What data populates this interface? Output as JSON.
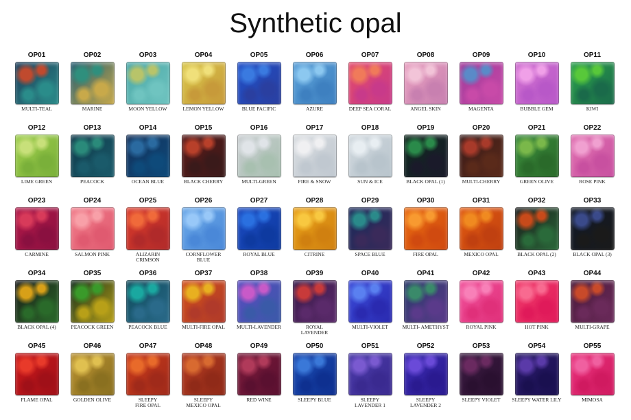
{
  "page": {
    "title": "Synthetic opal"
  },
  "swatches": [
    {
      "code": "OP01",
      "name": "MULTI-TEAL",
      "colors": [
        "#1d3b58",
        "#c04a2e",
        "#2a8c8a"
      ]
    },
    {
      "code": "OP02",
      "name": "MARINE",
      "colors": [
        "#1f5a70",
        "#2f8f7d",
        "#c8a94a"
      ]
    },
    {
      "code": "OP03",
      "name": "MOON YELLOW",
      "colors": [
        "#4aa7a6",
        "#b8c46a",
        "#6fc4c0"
      ]
    },
    {
      "code": "OP04",
      "name": "LEMON YELLOW",
      "colors": [
        "#d9c64a",
        "#f0e07a",
        "#c79a3a"
      ]
    },
    {
      "code": "OP05",
      "name": "BLUE PACIFIC",
      "colors": [
        "#1f4fc8",
        "#3a7ae0",
        "#2a3fa0"
      ]
    },
    {
      "code": "OP06",
      "name": "AZURE",
      "colors": [
        "#5aa0d8",
        "#8cc8f0",
        "#3e80c0"
      ]
    },
    {
      "code": "OP07",
      "name": "DEEP SEA CORAL",
      "colors": [
        "#e24a6a",
        "#f07a5a",
        "#c83a8a"
      ]
    },
    {
      "code": "OP08",
      "name": "ANGEL SKIN",
      "colors": [
        "#e8a0c0",
        "#f2c4d8",
        "#c880b0"
      ]
    },
    {
      "code": "OP09",
      "name": "MAGENTA",
      "colors": [
        "#a03a9a",
        "#5a8ac8",
        "#c84aa8"
      ]
    },
    {
      "code": "OP10",
      "name": "BUBBLE GEM",
      "colors": [
        "#d070d0",
        "#f0a0e8",
        "#b858c8"
      ]
    },
    {
      "code": "OP11",
      "name": "KIWI",
      "colors": [
        "#2aa04a",
        "#58c83a",
        "#1a6a4a"
      ]
    },
    {
      "code": "OP12",
      "name": "LIME GREEN",
      "colors": [
        "#9ccc4a",
        "#c8e07a",
        "#7ab03a"
      ]
    },
    {
      "code": "OP13",
      "name": "PEACOCK",
      "colors": [
        "#0f3a4a",
        "#2a8a7a",
        "#1a5a6a"
      ]
    },
    {
      "code": "OP14",
      "name": "OCEAN BLUE",
      "colors": [
        "#12305a",
        "#2a6aa0",
        "#0e4a7a"
      ]
    },
    {
      "code": "OP15",
      "name": "BLACK CHERRY",
      "colors": [
        "#5a1a18",
        "#b8402a",
        "#3a1a1a"
      ]
    },
    {
      "code": "OP16",
      "name": "MULTI-GREEN",
      "colors": [
        "#c8ccd0",
        "#e0e4e8",
        "#a8c0b0"
      ]
    },
    {
      "code": "OP17",
      "name": "FIRE & SNOW",
      "colors": [
        "#d8dce0",
        "#f0f0f2",
        "#c0c8d0"
      ]
    },
    {
      "code": "OP18",
      "name": "SUN & ICE",
      "colors": [
        "#d0d8de",
        "#e8eef2",
        "#b8c4cc"
      ]
    },
    {
      "code": "OP19",
      "name": "BLACK OPAL (1)",
      "colors": [
        "#0e2a1e",
        "#2a8a4a",
        "#1a1a2a"
      ]
    },
    {
      "code": "OP20",
      "name": "MULTI-CHERRY",
      "colors": [
        "#3a1a18",
        "#a83a2a",
        "#5a2a1a"
      ]
    },
    {
      "code": "OP21",
      "name": "GREEN OLIVE",
      "colors": [
        "#3a8a3a",
        "#7ab84a",
        "#2a6a2a"
      ]
    },
    {
      "code": "OP22",
      "name": "ROSE PINK",
      "colors": [
        "#e070b0",
        "#f0a0d0",
        "#c850a0"
      ]
    },
    {
      "code": "OP23",
      "name": "CARMINE",
      "colors": [
        "#b01848",
        "#d83a5a",
        "#8a1040"
      ]
    },
    {
      "code": "OP24",
      "name": "SALMON PINK",
      "colors": [
        "#f07a88",
        "#f8a0a8",
        "#e05a70"
      ]
    },
    {
      "code": "OP25",
      "name": "ALIZARIN\nCRIMSON",
      "colors": [
        "#d83a2a",
        "#f06a3a",
        "#b02a2a"
      ]
    },
    {
      "code": "OP26",
      "name": "CORNFLOWER\nBLUE",
      "colors": [
        "#6aa8e8",
        "#98c8f8",
        "#4a88d8"
      ]
    },
    {
      "code": "OP27",
      "name": "ROYAL BLUE",
      "colors": [
        "#1a4ac0",
        "#2a70e0",
        "#0e3aa0"
      ]
    },
    {
      "code": "OP28",
      "name": "CITRINE",
      "colors": [
        "#e8a018",
        "#f8c840",
        "#d08010"
      ]
    },
    {
      "code": "OP29",
      "name": "SPACE BLUE",
      "colors": [
        "#1a2a5a",
        "#2a8a8a",
        "#3a2a5a"
      ]
    },
    {
      "code": "OP30",
      "name": "FIRE OPAL",
      "colors": [
        "#e86a10",
        "#f89a30",
        "#d04a10"
      ]
    },
    {
      "code": "OP31",
      "name": "MEXICO OPAL",
      "colors": [
        "#e05a10",
        "#f08a20",
        "#c04010"
      ]
    },
    {
      "code": "OP32",
      "name": "BLACK OPAL (2)",
      "colors": [
        "#1a1a1a",
        "#c84a1a",
        "#2a6a3a"
      ]
    },
    {
      "code": "OP33",
      "name": "BLACK OPAL (3)",
      "colors": [
        "#101828",
        "#3a4a8a",
        "#1a1a1a"
      ]
    },
    {
      "code": "OP34",
      "name": "BLACK OPAL (4)",
      "colors": [
        "#1a1a18",
        "#d8a018",
        "#2a6a2a"
      ]
    },
    {
      "code": "OP35",
      "name": "PEACOCK GREEN",
      "colors": [
        "#0e2a1a",
        "#3a9a2a",
        "#b8a018"
      ]
    },
    {
      "code": "OP36",
      "name": "PEACOCK BLUE",
      "colors": [
        "#0e4a5a",
        "#1aa8a0",
        "#2a6a8a"
      ]
    },
    {
      "code": "OP37",
      "name": "MULTI-FIRE OPAL",
      "colors": [
        "#d0501a",
        "#e8b020",
        "#b03a2a"
      ]
    },
    {
      "code": "OP38",
      "name": "MULTI-LAVENDER",
      "colors": [
        "#5a4ac0",
        "#c85ac8",
        "#3a5aa8"
      ]
    },
    {
      "code": "OP39",
      "name": "ROYAL\nLAVENDER",
      "colors": [
        "#3a1a4a",
        "#c83a3a",
        "#5a2a6a"
      ]
    },
    {
      "code": "OP40",
      "name": "MULTI-VIOLET",
      "colors": [
        "#3a4ad8",
        "#5a80f0",
        "#2a2ab0"
      ]
    },
    {
      "code": "OP41",
      "name": "MULTI- AMETHYST",
      "colors": [
        "#2a3a6a",
        "#3a8a6a",
        "#5a3a8a"
      ]
    },
    {
      "code": "OP42",
      "name": "ROYAL PINK",
      "colors": [
        "#f0509a",
        "#f880b8",
        "#e0307a"
      ]
    },
    {
      "code": "OP43",
      "name": "HOT PINK",
      "colors": [
        "#f03a6a",
        "#f86a90",
        "#e01a5a"
      ]
    },
    {
      "code": "OP44",
      "name": "MULTI-GRAPE",
      "colors": [
        "#4a1a3a",
        "#c84a2a",
        "#6a2a5a"
      ]
    },
    {
      "code": "OP45",
      "name": "FLAME OPAL",
      "colors": [
        "#c8181a",
        "#e83a2a",
        "#a01018"
      ]
    },
    {
      "code": "OP46",
      "name": "GOLDEN OLIVE",
      "colors": [
        "#b89030",
        "#e0c050",
        "#8a7020"
      ]
    },
    {
      "code": "OP47",
      "name": "SLEEPY\nFIRE OPAL",
      "colors": [
        "#c83a1a",
        "#e86a2a",
        "#a02a1a"
      ]
    },
    {
      "code": "OP48",
      "name": "SLEEPY\nMEXICO OPAL",
      "colors": [
        "#b03a20",
        "#d86a30",
        "#902a18"
      ]
    },
    {
      "code": "OP49",
      "name": "RED WINE",
      "colors": [
        "#7a1a3a",
        "#b03a5a",
        "#5a1030"
      ]
    },
    {
      "code": "OP50",
      "name": "SLEEPY BLUE",
      "colors": [
        "#1a4ab0",
        "#3a78d8",
        "#0e3090"
      ]
    },
    {
      "code": "OP51",
      "name": "SLEEPY\nLAVENDER 1",
      "colors": [
        "#4a3aa8",
        "#7a5ad0",
        "#3a2a90"
      ]
    },
    {
      "code": "OP52",
      "name": "SLEEPY\nLAVENDER 2",
      "colors": [
        "#3a2ab0",
        "#6a4ad8",
        "#2a1a90"
      ]
    },
    {
      "code": "OP53",
      "name": "SLEEPY VIOLET",
      "colors": [
        "#3a1a40",
        "#6a2a60",
        "#2a1030"
      ]
    },
    {
      "code": "OP54",
      "name": "SLEEPY WATER LILY",
      "colors": [
        "#2a1a6a",
        "#5a3aa8",
        "#1a1050"
      ]
    },
    {
      "code": "OP55",
      "name": "MIMOSA",
      "colors": [
        "#e8307a",
        "#f060a0",
        "#d01a60"
      ]
    }
  ]
}
